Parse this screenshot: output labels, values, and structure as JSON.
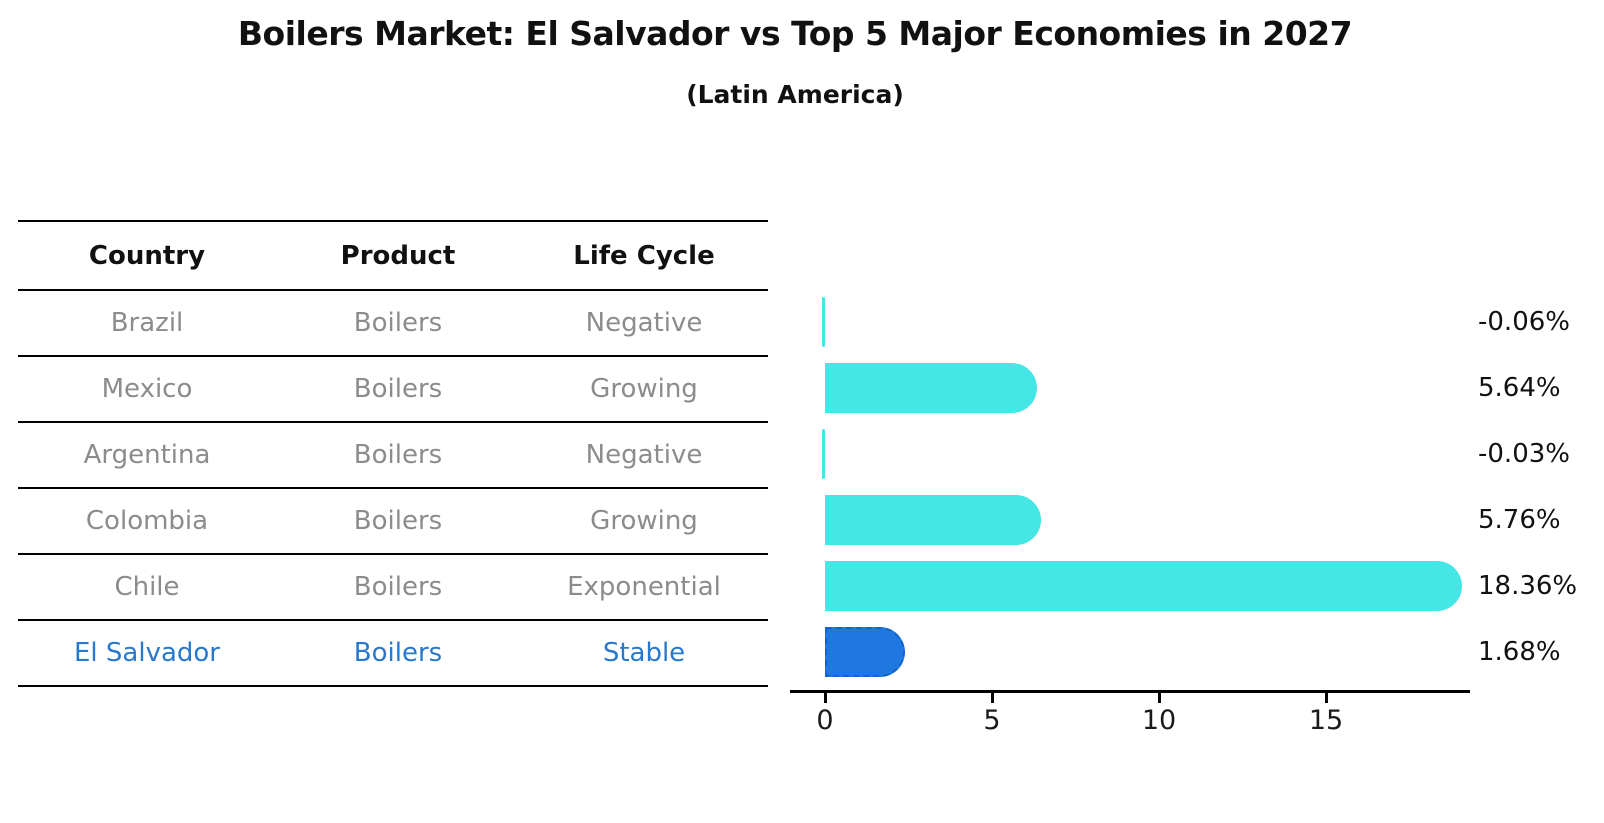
{
  "title": "Boilers Market: El Salvador vs Top 5 Major Economies in 2027",
  "subtitle": "(Latin America)",
  "table": {
    "headers": [
      "Country",
      "Product",
      "Life Cycle"
    ],
    "rows": [
      {
        "country": "Brazil",
        "product": "Boilers",
        "life_cycle": "Negative",
        "highlight": false
      },
      {
        "country": "Mexico",
        "product": "Boilers",
        "life_cycle": "Growing",
        "highlight": false
      },
      {
        "country": "Argentina",
        "product": "Boilers",
        "life_cycle": "Negative",
        "highlight": false
      },
      {
        "country": "Colombia",
        "product": "Boilers",
        "life_cycle": "Growing",
        "highlight": false
      },
      {
        "country": "Chile",
        "product": "Boilers",
        "life_cycle": "Exponential",
        "highlight": false
      },
      {
        "country": "El Salvador",
        "product": "Boilers",
        "life_cycle": "Stable",
        "highlight": true
      }
    ]
  },
  "chart_data": {
    "type": "bar",
    "orientation": "horizontal",
    "title": "Boilers Market: El Salvador vs Top 5 Major Economies in 2027",
    "subtitle": "(Latin America)",
    "categories": [
      "Brazil",
      "Mexico",
      "Argentina",
      "Colombia",
      "Chile",
      "El Salvador"
    ],
    "values": [
      -0.06,
      5.64,
      -0.03,
      5.76,
      18.36,
      1.68
    ],
    "value_labels": [
      "-0.06%",
      "5.64%",
      "-0.03%",
      "5.76%",
      "18.36%",
      "1.68%"
    ],
    "xlabel": "",
    "ylabel": "",
    "xticks": [
      0,
      5,
      10,
      15
    ],
    "xlim": [
      -1.1,
      19.3
    ],
    "grid": false,
    "legend": false,
    "highlight_index": 5
  },
  "colors": {
    "bar_cyan": "#45E6E6",
    "bar_blue": "#1E78E0",
    "highlight_text": "#2878CD",
    "table_text": "#8C8C8C",
    "header_text": "#111111",
    "axis": "#000000"
  }
}
